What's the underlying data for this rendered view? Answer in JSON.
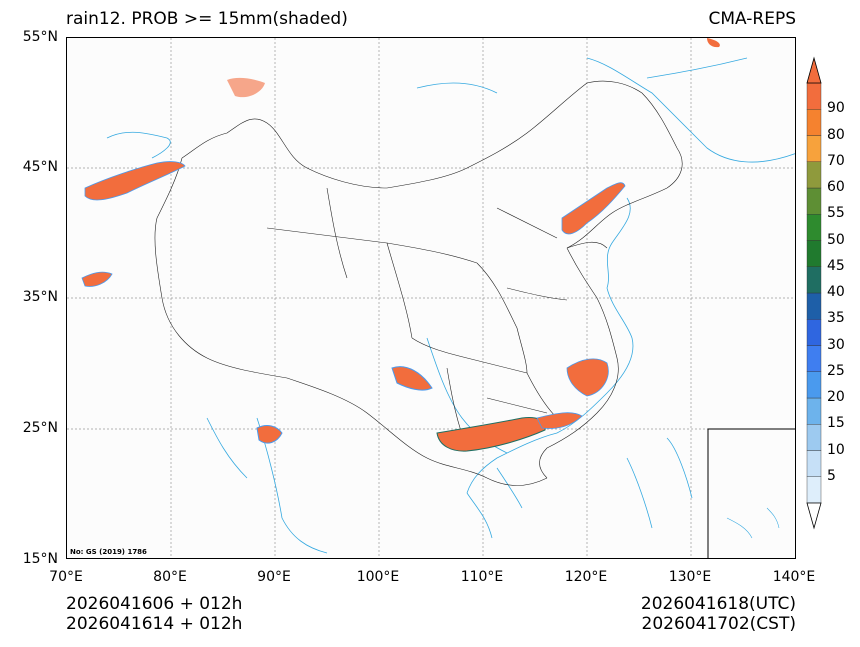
{
  "title": {
    "left": "rain12. PROB >= 15mm(shaded)",
    "right": "CMA-REPS"
  },
  "axes": {
    "lat_ticks": [
      "55°N",
      "45°N",
      "35°N",
      "25°N",
      "15°N"
    ],
    "lon_ticks": [
      "70°E",
      "80°E",
      "90°E",
      "100°E",
      "110°E",
      "120°E",
      "130°E",
      "140°E"
    ],
    "lat_range": [
      15,
      55
    ],
    "lon_range": [
      70,
      140
    ]
  },
  "colorbar": {
    "levels": [
      "5",
      "10",
      "15",
      "20",
      "25",
      "30",
      "35",
      "40",
      "45",
      "50",
      "55",
      "60",
      "70",
      "80",
      "90"
    ],
    "colors": [
      "#deeefb",
      "#c6e0f7",
      "#9dcaf0",
      "#6db3ec",
      "#4a9aee",
      "#3f7ef0",
      "#2f66e0",
      "#1e5fa8",
      "#1f6e62",
      "#207a2e",
      "#2e8b2e",
      "#5e8f34",
      "#8f9a3c",
      "#f7a23c",
      "#f5822f",
      "#f26d3d"
    ],
    "under_color": "#ffffff",
    "over_color": "#f26d3d"
  },
  "footer": {
    "left_line1": "2026041606  +  012h",
    "left_line2": "2026041614  +  012h",
    "right_line1": "2026041618(UTC)",
    "right_line2": "2026041702(CST)"
  },
  "map_stamp": "No: GS (2019) 1786"
}
